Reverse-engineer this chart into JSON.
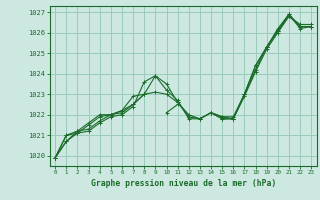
{
  "title": "Graphe pression niveau de la mer (hPa)",
  "bg_color": "#cce8e0",
  "grid_color": "#99ccbb",
  "line_color": "#1a6b2a",
  "xlim": [
    -0.5,
    23.5
  ],
  "ylim": [
    1019.5,
    1027.3
  ],
  "xticks": [
    0,
    1,
    2,
    3,
    4,
    5,
    6,
    7,
    8,
    9,
    10,
    11,
    12,
    13,
    14,
    15,
    16,
    17,
    18,
    19,
    20,
    21,
    22,
    23
  ],
  "yticks": [
    1020,
    1021,
    1022,
    1023,
    1024,
    1025,
    1026,
    1027
  ],
  "line1": [
    1019.9,
    1020.7,
    1021.1,
    1021.5,
    1021.9,
    1022.0,
    1022.2,
    1022.5,
    1023.0,
    1023.9,
    1023.5,
    1022.6,
    1022.0,
    1021.8,
    1022.1,
    1021.9,
    1021.8,
    1023.0,
    1024.4,
    1025.3,
    1026.1,
    1026.9,
    1026.2,
    1026.3
  ],
  "line2": [
    1019.9,
    1020.7,
    1021.2,
    1021.3,
    1021.7,
    1022.0,
    1022.1,
    1022.5,
    1023.0,
    1023.1,
    1023.0,
    1022.6,
    1021.9,
    1021.8,
    1022.1,
    1021.9,
    1021.9,
    1023.0,
    1024.2,
    1025.3,
    1026.1,
    1026.8,
    1026.4,
    1026.4
  ],
  "line3": [
    1019.9,
    1021.0,
    1021.1,
    1021.2,
    1021.6,
    1021.9,
    1022.0,
    1022.4,
    1023.6,
    1023.9,
    1023.2,
    1022.7,
    1021.8,
    1021.8,
    1022.1,
    1021.8,
    1021.8,
    1022.9,
    1024.1,
    1025.2,
    1026.0,
    1026.8,
    1026.3,
    1026.3
  ],
  "line4": [
    1019.9,
    1021.0,
    1021.2,
    1021.6,
    1022.0,
    1022.0,
    1022.2,
    1022.9,
    1023.0,
    null,
    1022.1,
    1022.5,
    null,
    null,
    1022.1,
    1021.8,
    1021.8,
    1023.0,
    1024.4,
    1025.3,
    1026.2,
    1026.9,
    1026.3,
    1026.3
  ]
}
